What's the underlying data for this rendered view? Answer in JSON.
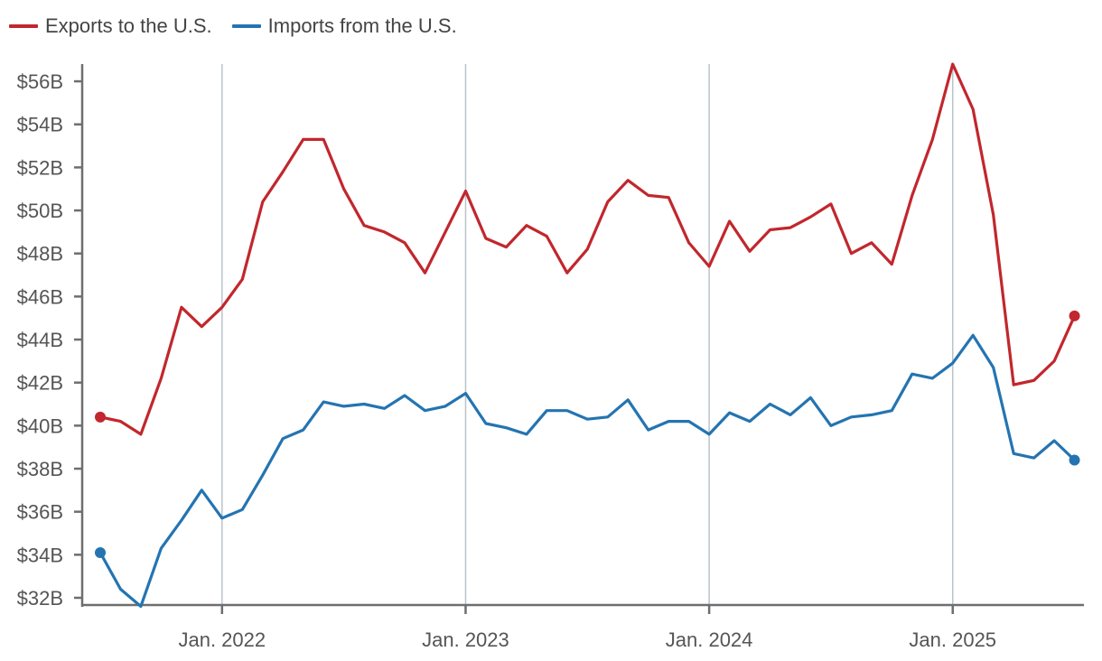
{
  "chart_data": {
    "type": "line",
    "title": "",
    "xlabel": "",
    "ylabel": "",
    "ylim": [
      32,
      56.8
    ],
    "ytick_values": [
      32,
      34,
      36,
      38,
      40,
      42,
      44,
      46,
      48,
      50,
      52,
      54,
      56
    ],
    "ytick_labels": [
      "$32B",
      "$34B",
      "$36B",
      "$38B",
      "$40B",
      "$42B",
      "$44B",
      "$46B",
      "$48B",
      "$50B",
      "$52B",
      "$54B",
      "$56B"
    ],
    "x_start": "2021-07",
    "xtick_labels": [
      "Jan. 2022",
      "Jan. 2023",
      "Jan. 2024",
      "Jan. 2025"
    ],
    "xtick_month_index": [
      6,
      18,
      30,
      42
    ],
    "grid": "vertical lines at January of each year",
    "legend": {
      "placement": "top-left"
    },
    "series": [
      {
        "name": "Exports to the U.S.",
        "color": "#c1272d",
        "values": [
          40.4,
          40.2,
          39.6,
          42.2,
          45.5,
          44.6,
          45.5,
          46.8,
          50.4,
          51.8,
          53.3,
          53.3,
          51.0,
          49.3,
          49.0,
          48.5,
          47.1,
          49.0,
          50.9,
          48.7,
          48.3,
          49.3,
          48.8,
          47.1,
          48.2,
          50.4,
          51.4,
          50.7,
          50.6,
          48.5,
          47.4,
          49.5,
          48.1,
          49.1,
          49.2,
          49.7,
          50.3,
          48.0,
          48.5,
          47.5,
          50.7,
          53.3,
          56.8,
          54.7,
          49.8,
          41.9,
          42.1,
          43.0,
          45.1
        ]
      },
      {
        "name": "Imports from the U.S.",
        "color": "#2474b1",
        "values": [
          34.1,
          32.4,
          31.6,
          34.3,
          35.6,
          37.0,
          35.7,
          36.1,
          37.7,
          39.4,
          39.8,
          41.1,
          40.9,
          41.0,
          40.8,
          41.4,
          40.7,
          40.9,
          41.5,
          40.1,
          39.9,
          39.6,
          40.7,
          40.7,
          40.3,
          40.4,
          41.2,
          39.8,
          40.2,
          40.2,
          39.6,
          40.6,
          40.2,
          41.0,
          40.5,
          41.3,
          40.0,
          40.4,
          40.5,
          40.7,
          42.4,
          42.2,
          42.9,
          44.2,
          42.7,
          38.7,
          38.5,
          39.3,
          38.4
        ]
      }
    ]
  }
}
